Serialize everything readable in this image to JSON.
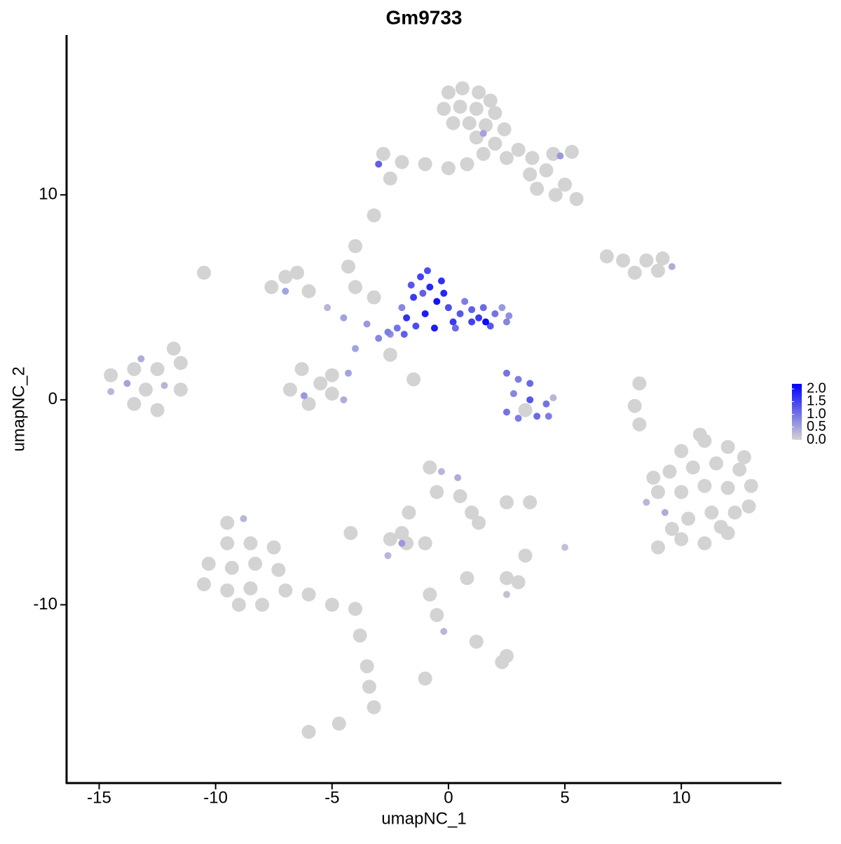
{
  "chart_data": {
    "type": "scatter",
    "title": "Gm9733",
    "x_label": "umapNC_1",
    "y_label": "umapNC_2",
    "xlim": [
      -16.4,
      14.3
    ],
    "ylim": [
      -18.7,
      17.8
    ],
    "xticks": [
      -15,
      -10,
      -5,
      0,
      5,
      10
    ],
    "yticks": [
      -10,
      0,
      10
    ],
    "colors": [
      "#d3d3d3",
      "#0000ff"
    ],
    "clim": [
      0,
      2.2
    ],
    "legend_ticks": [
      {
        "value": 0,
        "label": "0.0"
      },
      {
        "value": 0.5,
        "label": "0.5"
      },
      {
        "value": 1,
        "label": "1.0"
      },
      {
        "value": 1.5,
        "label": "1.5"
      },
      {
        "value": 2,
        "label": "2.0"
      }
    ],
    "x": [
      0,
      0.6,
      1.3,
      1.8,
      -0.2,
      0.5,
      1.2,
      2,
      0.2,
      0.9,
      1.6,
      2.4,
      1.2,
      2,
      3,
      3.6,
      4.5,
      5.3,
      2.5,
      3.5,
      4.2,
      5,
      5.5,
      4.6,
      3.8,
      1.5,
      0.8,
      0,
      -1,
      -2,
      -2.8,
      -3,
      -2.5,
      -3.2,
      4.8,
      1.5,
      -7,
      -6.5,
      -7.6,
      -6,
      -5.2,
      -4.5,
      -3.5,
      -3,
      -2.5,
      -4,
      -4.3,
      -4,
      -3.2,
      -2.5,
      -1.5,
      -4,
      -5.5,
      -6.3,
      -6.8,
      -5,
      -4.5,
      -6,
      -5,
      -6.2,
      -4.3,
      -7,
      -1.2,
      -0.8,
      -1.5,
      -0.5,
      -1,
      -1.8,
      0,
      0.5,
      1,
      1.5,
      2,
      2.5,
      1.8,
      1,
      0.2,
      -0.6,
      -1.4,
      -2.2,
      -0.3,
      1.6,
      -1.1,
      0.7,
      2.3,
      -2,
      -1.6,
      -0.2,
      0.3,
      1.3,
      2.6,
      -2.6,
      -1.9,
      -0.9,
      2.5,
      3,
      3.5,
      2.8,
      3.5,
      4.2,
      2.5,
      3,
      3.8,
      4.3,
      3.3,
      4.5,
      6.8,
      7.5,
      8.5,
      9.2,
      9.6,
      8,
      9,
      8.2,
      8,
      8.2,
      10,
      11,
      12,
      9.5,
      10.5,
      11.5,
      12.5,
      9,
      10,
      11,
      12,
      13,
      9.3,
      10.3,
      11.3,
      12.3,
      10,
      11,
      12,
      8.5,
      9,
      10.8,
      12.7,
      9.6,
      11.7,
      12.9,
      8.8,
      -9.5,
      -8.8,
      -9.5,
      -8.5,
      -7.5,
      -10.3,
      -9.3,
      -8.3,
      -7.3,
      -10.5,
      -9.5,
      -8.5,
      -7,
      -6,
      -5,
      -4,
      -8,
      -9,
      -3.8,
      -3.5,
      -3.4,
      -3.2,
      -6,
      -4.7,
      -0.8,
      -0.3,
      0.4,
      -0.5,
      0.5,
      1,
      1.3,
      -1.7,
      -2,
      -2.5,
      -2,
      -2.6,
      -1,
      2.5,
      3.5,
      0.8,
      2.5,
      2.5,
      3,
      -0.8,
      -0.5,
      -0.2,
      1.2,
      2.5,
      2.3,
      5,
      3.3,
      -4.2,
      -1,
      -1.8,
      -14.5,
      -13.5,
      -12.5,
      -11.8,
      -11.5,
      -14.5,
      -13.8,
      -13,
      -12.2,
      -13.5,
      -12.5,
      -11.5,
      -13.2,
      -10.5
    ],
    "y": [
      15,
      15.2,
      15,
      14.6,
      14.2,
      14.3,
      14.2,
      14,
      13.5,
      13.5,
      13.4,
      13.2,
      12.8,
      12.5,
      12.2,
      11.8,
      12,
      12.1,
      11.8,
      11,
      11.2,
      10.5,
      9.8,
      10,
      10.3,
      12,
      11.5,
      11.3,
      11.5,
      11.6,
      12,
      11.5,
      10.8,
      9,
      11.9,
      13,
      6,
      6.2,
      5.5,
      5.3,
      4.5,
      4,
      3.7,
      3,
      3.2,
      7.5,
      6.5,
      5.5,
      5,
      2.2,
      1,
      2.5,
      0.8,
      1.5,
      0.5,
      1.2,
      0,
      -0.2,
      0.3,
      0.2,
      1.3,
      5.3,
      6,
      5.5,
      5,
      4.8,
      4.2,
      4,
      4.5,
      4.2,
      4.4,
      4.5,
      4.2,
      3.8,
      3.6,
      3.8,
      3.8,
      3.5,
      3.6,
      3.5,
      5.8,
      3.8,
      5.2,
      4.8,
      4.5,
      4.5,
      5.6,
      5.2,
      3.5,
      4,
      4.1,
      3.3,
      3.2,
      6.3,
      1.3,
      1,
      0.8,
      0.3,
      0,
      -0.2,
      -0.6,
      -0.9,
      -0.8,
      -0.8,
      -0.5,
      0.1,
      7,
      6.8,
      6.8,
      6.9,
      6.5,
      6.2,
      6.3,
      0.8,
      -0.3,
      -1.2,
      -2.5,
      -2,
      -2.3,
      -3.5,
      -3.3,
      -3.1,
      -3.4,
      -4.5,
      -4.5,
      -4.2,
      -4.3,
      -4.2,
      -5.5,
      -5.8,
      -5.5,
      -5.5,
      -6.8,
      -7,
      -6.5,
      -5,
      -7.2,
      -1.7,
      -2.8,
      -6.3,
      -6.2,
      -5.2,
      -3.8,
      -6,
      -5.8,
      -7,
      -7,
      -7.2,
      -8,
      -8.2,
      -8,
      -8.3,
      -9,
      -9.3,
      -9.2,
      -9.3,
      -9.5,
      -10,
      -10.2,
      -10,
      -10,
      -11.5,
      -13,
      -14,
      -15,
      -16.2,
      -15.8,
      -3.3,
      -3.5,
      -3.8,
      -4.5,
      -4.7,
      -5.5,
      -6,
      -5.5,
      -6.5,
      -6.8,
      -7,
      -7.6,
      -7,
      -5,
      -5,
      -8.7,
      -8.7,
      -9.5,
      -8.9,
      -9.5,
      -10.5,
      -11.3,
      -11.8,
      -12.5,
      -12.8,
      -7.2,
      -7.6,
      -6.5,
      -13.6,
      -7,
      1.2,
      1.5,
      1.5,
      2.5,
      1.8,
      0.4,
      0.8,
      0.5,
      0.7,
      -0.2,
      -0.5,
      0.5,
      2,
      6.2
    ],
    "expression": [
      0,
      0,
      0,
      0,
      0,
      0,
      0,
      0,
      0,
      0,
      0,
      0,
      0,
      0,
      0,
      0,
      0,
      0,
      0,
      0,
      0,
      0,
      0,
      0,
      0,
      0,
      0,
      0,
      0,
      0,
      0,
      1.2,
      0,
      0,
      0.6,
      0.5,
      0,
      0,
      0,
      0,
      0.3,
      0.5,
      0.6,
      0.8,
      0.7,
      0,
      0,
      0,
      0,
      0,
      0,
      0.5,
      0,
      0,
      0,
      0,
      0.4,
      0,
      0,
      0.6,
      0.5,
      0.5,
      1.5,
      1.8,
      1.6,
      2,
      1.9,
      1.7,
      1.4,
      1.3,
      1.2,
      1.1,
      1,
      0.8,
      1.3,
      1.5,
      1.6,
      1.9,
      1.4,
      1,
      1.7,
      2.1,
      1.2,
      0.9,
      0.6,
      0.8,
      1.3,
      1.8,
      1.1,
      1.6,
      0.7,
      0.9,
      1.2,
      1.4,
      1,
      0.9,
      1.1,
      0.8,
      1.3,
      1,
      1,
      0.9,
      1.1,
      0.9,
      0,
      0.3,
      0,
      0,
      0,
      0,
      0.4,
      0,
      0,
      0,
      0,
      0,
      0,
      0,
      0,
      0,
      0,
      0,
      0,
      0,
      0,
      0,
      0,
      0,
      0.4,
      0,
      0,
      0,
      0,
      0,
      0,
      0.3,
      0,
      0,
      0,
      0,
      0,
      0,
      0,
      0,
      0.3,
      0,
      0,
      0,
      0,
      0,
      0,
      0,
      0,
      0,
      0,
      0,
      0,
      0,
      0,
      0,
      0,
      0,
      0,
      0,
      0,
      0,
      0,
      0,
      0.3,
      0.4,
      0,
      0,
      0,
      0,
      0,
      0,
      0,
      0.6,
      0.3,
      0,
      0,
      0,
      0,
      0,
      0.2,
      0,
      0,
      0,
      0.3,
      0,
      0,
      0,
      0.2,
      0,
      0,
      0,
      0,
      0,
      0,
      0,
      0,
      0,
      0.3,
      0.5,
      0,
      0.3,
      0,
      0,
      0,
      0.4,
      0
    ]
  }
}
